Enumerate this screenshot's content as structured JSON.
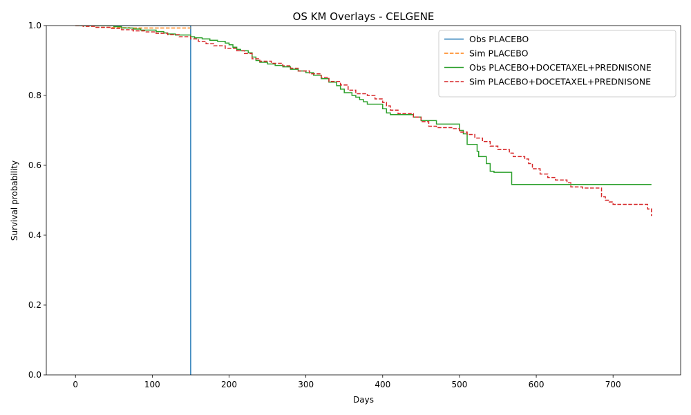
{
  "chart_data": {
    "type": "line",
    "title": "OS KM Overlays - CELGENE",
    "xlabel": "Days",
    "ylabel": "Survival probability",
    "xlim": [
      -38,
      788
    ],
    "ylim": [
      0,
      1
    ],
    "x_ticks": [
      0,
      100,
      200,
      300,
      400,
      500,
      600,
      700
    ],
    "y_ticks": [
      0.0,
      0.2,
      0.4,
      0.6,
      0.8,
      1.0
    ],
    "x_tick_labels": [
      "0",
      "100",
      "200",
      "300",
      "400",
      "500",
      "600",
      "700"
    ],
    "y_tick_labels": [
      "0.0",
      "0.2",
      "0.4",
      "0.6",
      "0.8",
      "1.0"
    ],
    "grid": false,
    "legend_position": "top-right",
    "series": [
      {
        "name": "Obs PLACEBO",
        "color": "#1f77b4",
        "dash": "solid",
        "step": true,
        "x": [
          0,
          150,
          150
        ],
        "y": [
          1.0,
          1.0,
          0.0
        ]
      },
      {
        "name": "Sim PLACEBO",
        "color": "#ff7f0e",
        "dash": "dashed",
        "step": true,
        "x": [
          0,
          10,
          25,
          45,
          70,
          150
        ],
        "y": [
          1.0,
          0.998,
          0.995,
          0.994,
          0.993,
          0.993
        ]
      },
      {
        "name": "Obs PLACEBO+DOCETAXEL+PREDNISONE",
        "color": "#2ca02c",
        "dash": "solid",
        "step": true,
        "x": [
          0,
          50,
          60,
          75,
          85,
          105,
          115,
          120,
          130,
          150,
          155,
          165,
          175,
          185,
          195,
          200,
          205,
          210,
          215,
          225,
          230,
          235,
          240,
          250,
          260,
          270,
          280,
          290,
          300,
          310,
          320,
          330,
          340,
          345,
          350,
          360,
          365,
          370,
          375,
          380,
          385,
          400,
          405,
          410,
          440,
          450,
          470,
          500,
          505,
          510,
          520,
          523,
          525,
          535,
          540,
          545,
          568,
          750
        ],
        "y": [
          1.0,
          0.997,
          0.993,
          0.99,
          0.987,
          0.983,
          0.979,
          0.976,
          0.973,
          0.968,
          0.965,
          0.962,
          0.958,
          0.955,
          0.95,
          0.945,
          0.938,
          0.932,
          0.928,
          0.922,
          0.91,
          0.9,
          0.895,
          0.89,
          0.886,
          0.882,
          0.875,
          0.87,
          0.865,
          0.858,
          0.848,
          0.838,
          0.828,
          0.818,
          0.808,
          0.8,
          0.795,
          0.788,
          0.782,
          0.775,
          0.775,
          0.762,
          0.75,
          0.745,
          0.738,
          0.728,
          0.718,
          0.7,
          0.69,
          0.66,
          0.66,
          0.64,
          0.625,
          0.605,
          0.583,
          0.58,
          0.545,
          0.545
        ]
      },
      {
        "name": "Sim PLACEBO+DOCETAXEL+PREDNISONE",
        "color": "#d62728",
        "dash": "dashed",
        "step": true,
        "x": [
          0,
          10,
          25,
          45,
          60,
          75,
          90,
          105,
          120,
          135,
          150,
          160,
          170,
          180,
          195,
          210,
          220,
          230,
          240,
          255,
          270,
          280,
          290,
          305,
          320,
          330,
          345,
          355,
          365,
          380,
          390,
          400,
          405,
          410,
          420,
          440,
          450,
          460,
          470,
          490,
          500,
          510,
          520,
          530,
          540,
          550,
          565,
          570,
          585,
          590,
          595,
          605,
          615,
          625,
          640,
          645,
          660,
          685,
          690,
          695,
          700,
          710,
          740,
          745,
          750
        ],
        "y": [
          1.0,
          0.998,
          0.995,
          0.992,
          0.988,
          0.985,
          0.982,
          0.978,
          0.974,
          0.968,
          0.962,
          0.955,
          0.948,
          0.942,
          0.935,
          0.928,
          0.92,
          0.905,
          0.898,
          0.892,
          0.885,
          0.878,
          0.87,
          0.862,
          0.852,
          0.84,
          0.83,
          0.815,
          0.805,
          0.8,
          0.79,
          0.78,
          0.77,
          0.758,
          0.748,
          0.738,
          0.725,
          0.712,
          0.708,
          0.705,
          0.695,
          0.688,
          0.678,
          0.668,
          0.655,
          0.645,
          0.635,
          0.625,
          0.618,
          0.605,
          0.59,
          0.575,
          0.565,
          0.558,
          0.55,
          0.538,
          0.535,
          0.51,
          0.5,
          0.495,
          0.488,
          0.488,
          0.488,
          0.475,
          0.455
        ]
      }
    ]
  }
}
